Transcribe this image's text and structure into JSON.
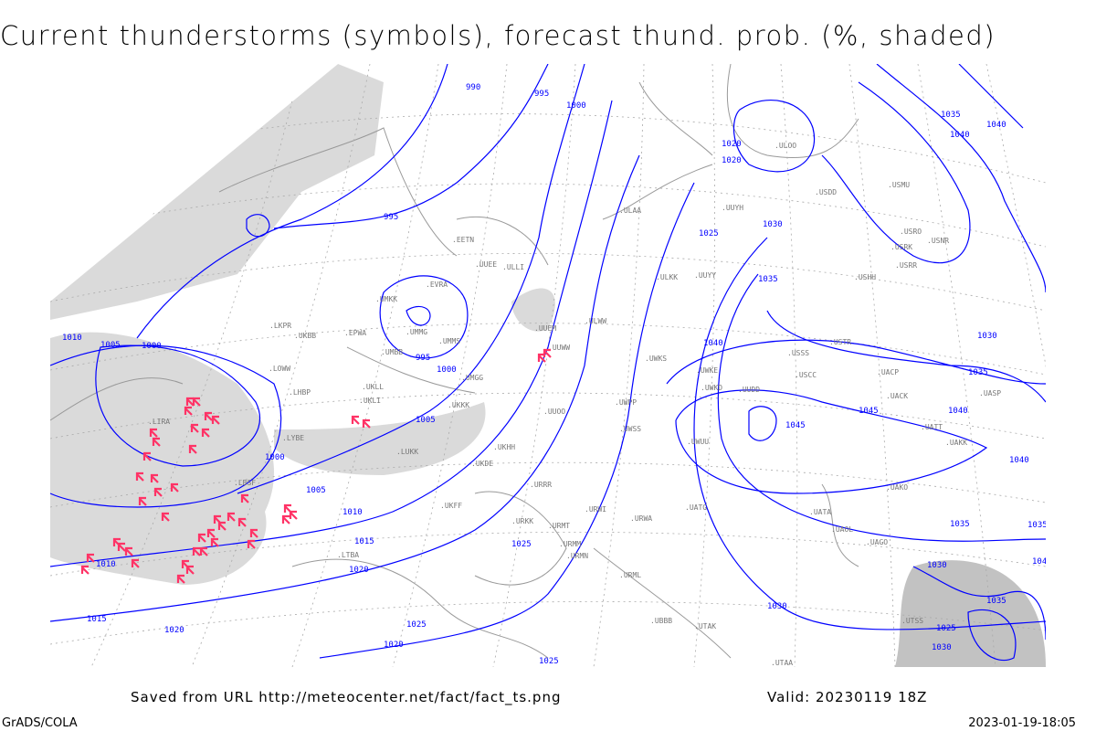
{
  "title": "Current thunderstorms (symbols), forecast thund. prob. (%, shaded)",
  "footer": {
    "saved_from": "Saved from URL http://meteocenter.net/fact/fact_ts.png",
    "valid": "Valid: 20230119 18Z",
    "credit": "GrADS/COLA",
    "timestamp": "2023-01-19-18:05"
  },
  "colors": {
    "isobar": "#0000ff",
    "thunderstorm_symbol": "#ff3366",
    "shading": "#cccccc",
    "coastline": "#999999"
  },
  "isobar_labels": [
    "990",
    "995",
    "1000",
    "1020",
    "1020",
    "995",
    "1025",
    "1030",
    "1035",
    "1040",
    "1035",
    "1040",
    "1010",
    "1005",
    "1000",
    "995",
    "1000",
    "1005",
    "1000",
    "1005",
    "1010",
    "1015",
    "1020",
    "1025",
    "1025",
    "1010",
    "1015",
    "1020",
    "1020",
    "1025",
    "1030",
    "1035",
    "1040",
    "1045",
    "1045",
    "1040",
    "1035",
    "1030",
    "1035",
    "1040",
    "1045",
    "1030",
    "1030",
    "1025",
    "1035"
  ],
  "stations": [
    "ULOO",
    "USDD",
    "USMU",
    "USRO",
    "USRK",
    "USNR",
    "USRR",
    "UUYH",
    "UUYY",
    "USHH",
    "ULAA",
    "ULKK",
    "ULWW",
    "UUEM",
    "UUWW",
    "UUOO",
    "UWKS",
    "UWKE",
    "UWKD",
    "UUDD",
    "UWPP",
    "UWSS",
    "UWUU",
    "USSS",
    "USTR",
    "USCC",
    "UACP",
    "UACK",
    "UASP",
    "UATT",
    "UAKK",
    "UAKO",
    "UATG",
    "UATA",
    "UAOL",
    "UAGO",
    "URWA",
    "URWI",
    "URRR",
    "URKK",
    "URMT",
    "URMM",
    "URMN",
    "URML",
    "UBBB",
    "UTAK",
    "EVRA",
    "EETN",
    "ULLI",
    "UMKK",
    "UMMG",
    "UMMS",
    "UMGG",
    "EPWA",
    "UMBB",
    "UKLL",
    "UKLI",
    "UKBB",
    "UKKK",
    "UKHH",
    "UKDE",
    "UKFF",
    "LKPR",
    "LOWW",
    "LHBP",
    "LYBE",
    "LIRA",
    "LBSF",
    "LTBA",
    "LUKK",
    "UUEE",
    "UTSS",
    "UTAA"
  ]
}
